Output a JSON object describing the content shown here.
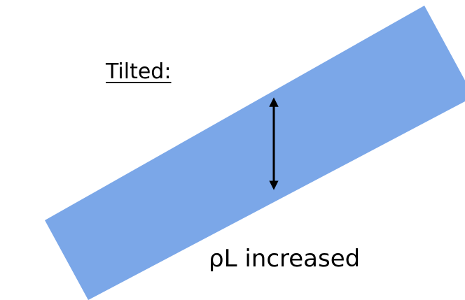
{
  "title": "Tilted:",
  "caption": "ρL increased",
  "colors": {
    "slab": "#7ba7e8",
    "arrow": "#000000",
    "background": "#ffffff"
  },
  "icons": {
    "thickness_arrow": "double-headed-vertical-arrow-icon"
  }
}
